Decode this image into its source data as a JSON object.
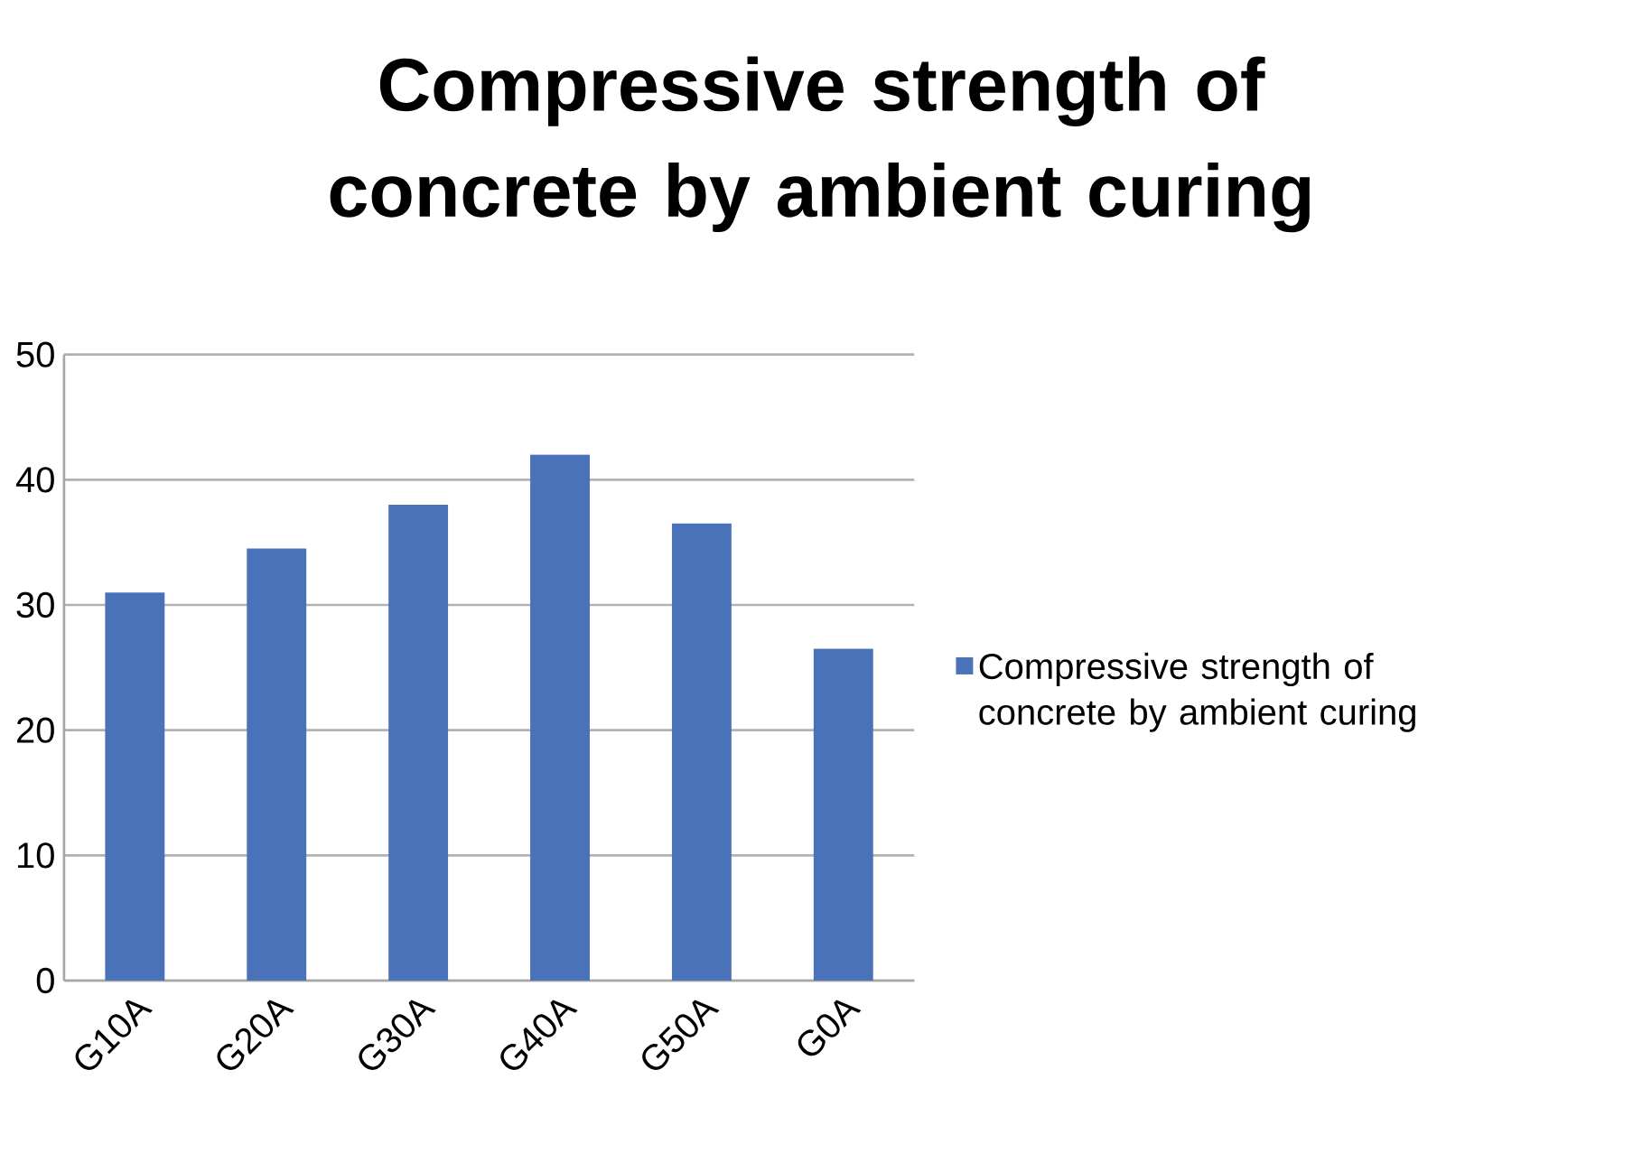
{
  "chart_data": {
    "type": "bar",
    "title": "Compressive strength of concrete by ambient curing",
    "categories": [
      "G10A",
      "G20A",
      "G30A",
      "G40A",
      "G50A",
      "G0A"
    ],
    "series": [
      {
        "name": "Compressive strength of concrete by ambient curing",
        "color": "#4a72b8",
        "values": [
          31,
          34.5,
          38,
          42,
          36.5,
          26.5
        ]
      }
    ],
    "ylim": [
      0,
      50
    ],
    "yticks": [
      0,
      10,
      20,
      30,
      40,
      50
    ],
    "grid": "y",
    "legend": "right"
  }
}
